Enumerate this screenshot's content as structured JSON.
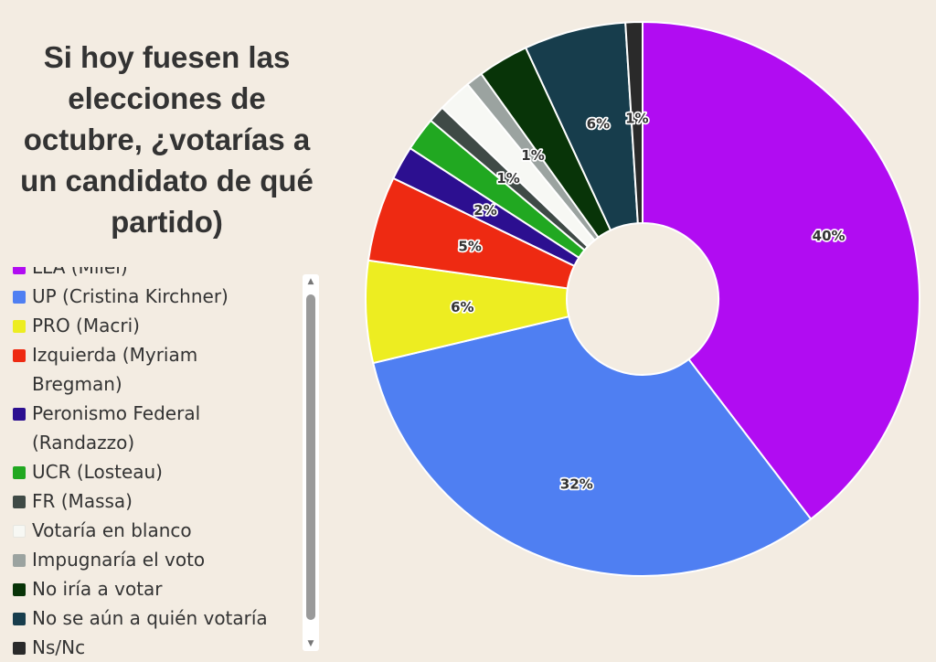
{
  "chart_data": {
    "type": "pie",
    "title": "Si hoy fuesen las elecciones de octubre, ¿votarías a un candidato de qué partido)",
    "donut": true,
    "legend_position": "left",
    "slices": [
      {
        "name": "LLA (Milei)",
        "value": 40,
        "label": "40%",
        "color": "#b10cf2"
      },
      {
        "name": "UP (Cristina Kirchner)",
        "value": 32,
        "label": "32%",
        "color": "#4f7ff2"
      },
      {
        "name": "PRO (Macri)",
        "value": 6,
        "label": "6%",
        "color": "#eded21"
      },
      {
        "name": "Izquierda (Myriam Bregman)",
        "value": 5,
        "label": "5%",
        "color": "#ee2a12"
      },
      {
        "name": "Peronismo Federal (Randazzo)",
        "value": 2,
        "label": "2%",
        "color": "#2c0f90"
      },
      {
        "name": "UCR (Losteau)",
        "value": 2,
        "label": "",
        "color": "#21a821"
      },
      {
        "name": "FR (Massa)",
        "value": 1,
        "label": "1%",
        "color": "#3f4a46"
      },
      {
        "name": "Votaría en blanco",
        "value": 2,
        "label": "",
        "color": "#f7f8f4"
      },
      {
        "name": "Impugnaría el voto",
        "value": 1,
        "label": "1%",
        "color": "#9ba3a0"
      },
      {
        "name": "No iría a votar",
        "value": 3,
        "label": "",
        "color": "#083408"
      },
      {
        "name": "No se aún a quién votaría",
        "value": 6,
        "label": "6%",
        "color": "#173d4c"
      },
      {
        "name": "Ns/Nc",
        "value": 1,
        "label": "1%",
        "color": "#2a2a2a"
      }
    ]
  },
  "colors": {
    "background": "#f3ece2",
    "text": "#333333"
  }
}
